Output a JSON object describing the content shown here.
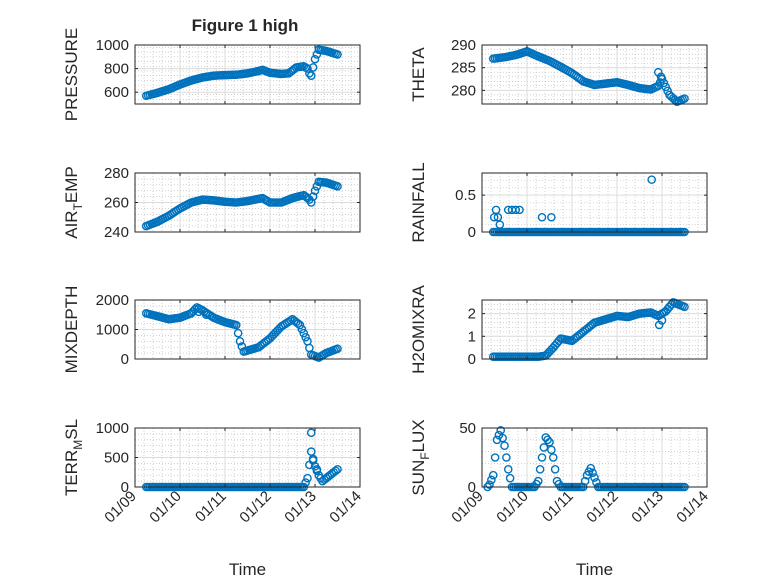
{
  "figure_title": "Figure 1 high",
  "x_axis_label": "Time",
  "colors": {
    "marker": "#0072BD",
    "axis": "#262626",
    "grid": "#DCDCDC",
    "minor_grid": "#B4B4B4"
  },
  "chart_data": [
    {
      "type": "scatter",
      "marker": "open-circle",
      "title": "Figure 1 high",
      "ylabel": "PRESSURE",
      "ylabel_base": "PRESSURE",
      "ylabel_sub": "",
      "xlabel": "",
      "xlim": [
        "2022-01-09",
        "2022-01-14"
      ],
      "xticks": [
        "01/09",
        "01/10",
        "01/11",
        "01/12",
        "01/13",
        "01/14"
      ],
      "ylim": [
        500,
        1000
      ],
      "yticks": [
        600,
        800,
        1000
      ],
      "grid": "on",
      "minor_grid": "on",
      "anchors": [
        [
          "01-09 06:00",
          570
        ],
        [
          "01-09 12:00",
          595
        ],
        [
          "01-09 18:00",
          625
        ],
        [
          "01-10 00:00",
          665
        ],
        [
          "01-10 06:00",
          700
        ],
        [
          "01-10 12:00",
          725
        ],
        [
          "01-10 18:00",
          740
        ],
        [
          "01-11 00:00",
          745
        ],
        [
          "01-11 06:00",
          748
        ],
        [
          "01-11 12:00",
          760
        ],
        [
          "01-11 18:00",
          780
        ],
        [
          "01-11 20:00",
          790
        ],
        [
          "01-12 00:00",
          765
        ],
        [
          "01-12 06:00",
          755
        ],
        [
          "01-12 10:00",
          760
        ],
        [
          "01-12 14:00",
          810
        ],
        [
          "01-12 18:00",
          820
        ],
        [
          "01-12 20:00",
          800
        ],
        [
          "01-12 21:00",
          760
        ],
        [
          "01-12 22:00",
          740
        ],
        [
          "01-13 00:00",
          880
        ],
        [
          "01-13 02:00",
          960
        ],
        [
          "01-13 06:00",
          950
        ],
        [
          "01-13 12:00",
          920
        ]
      ],
      "outliers": []
    },
    {
      "type": "scatter",
      "marker": "open-circle",
      "ylabel": "THETA",
      "ylabel_base": "THETA",
      "ylabel_sub": "",
      "xlabel": "",
      "xlim": [
        "2022-01-09",
        "2022-01-14"
      ],
      "xticks": [
        "01/09",
        "01/10",
        "01/11",
        "01/12",
        "01/13",
        "01/14"
      ],
      "ylim": [
        277,
        290
      ],
      "yticks": [
        280,
        285,
        290
      ],
      "grid": "on",
      "minor_grid": "on",
      "anchors": [
        [
          "01-09 06:00",
          287
        ],
        [
          "01-09 12:00",
          287.3
        ],
        [
          "01-09 18:00",
          287.8
        ],
        [
          "01-10 00:00",
          288.6
        ],
        [
          "01-10 06:00",
          287.5
        ],
        [
          "01-10 12:00",
          286.5
        ],
        [
          "01-10 18:00",
          285.2
        ],
        [
          "01-11 00:00",
          283.8
        ],
        [
          "01-11 06:00",
          282
        ],
        [
          "01-11 12:00",
          281.2
        ],
        [
          "01-11 18:00",
          281.5
        ],
        [
          "01-12 00:00",
          281.8
        ],
        [
          "01-12 06:00",
          281.2
        ],
        [
          "01-12 12:00",
          280.5
        ],
        [
          "01-12 18:00",
          280.2
        ],
        [
          "01-12 22:00",
          281
        ],
        [
          "01-13 00:00",
          282.5
        ],
        [
          "01-13 04:00",
          279
        ],
        [
          "01-13 08:00",
          277.5
        ],
        [
          "01-13 12:00",
          278.2
        ]
      ],
      "outliers": [
        [
          "01-12 22:00",
          284
        ],
        [
          "01-12 23:30",
          283
        ]
      ]
    },
    {
      "type": "scatter",
      "marker": "open-circle",
      "ylabel": "AIR_TEMP",
      "ylabel_base": "AIR",
      "ylabel_sub": "T",
      "ylabel_rest": "EMP",
      "xlabel": "",
      "xlim": [
        "2022-01-09",
        "2022-01-14"
      ],
      "xticks": [
        "01/09",
        "01/10",
        "01/11",
        "01/12",
        "01/13",
        "01/14"
      ],
      "ylim": [
        240,
        280
      ],
      "yticks": [
        240,
        260,
        280
      ],
      "grid": "on",
      "minor_grid": "on",
      "anchors": [
        [
          "01-09 06:00",
          244
        ],
        [
          "01-09 12:00",
          247
        ],
        [
          "01-09 18:00",
          251
        ],
        [
          "01-10 00:00",
          256
        ],
        [
          "01-10 06:00",
          260
        ],
        [
          "01-10 12:00",
          262
        ],
        [
          "01-10 18:00",
          261.5
        ],
        [
          "01-11 00:00",
          260.5
        ],
        [
          "01-11 06:00",
          260
        ],
        [
          "01-11 12:00",
          261
        ],
        [
          "01-11 18:00",
          262.5
        ],
        [
          "01-11 20:00",
          263
        ],
        [
          "01-12 00:00",
          260
        ],
        [
          "01-12 06:00",
          260
        ],
        [
          "01-12 12:00",
          263
        ],
        [
          "01-12 18:00",
          265
        ],
        [
          "01-12 21:00",
          262
        ],
        [
          "01-12 22:00",
          260
        ],
        [
          "01-13 00:00",
          268
        ],
        [
          "01-13 02:00",
          274
        ],
        [
          "01-13 06:00",
          273.5
        ],
        [
          "01-13 12:00",
          271
        ]
      ],
      "outliers": []
    },
    {
      "type": "scatter",
      "marker": "open-circle",
      "ylabel": "RAINFALL",
      "ylabel_base": "RAINFALL",
      "ylabel_sub": "",
      "xlabel": "",
      "xlim": [
        "2022-01-09",
        "2022-01-14"
      ],
      "xticks": [
        "01/09",
        "01/10",
        "01/11",
        "01/12",
        "01/13",
        "01/14"
      ],
      "ylim": [
        0,
        0.8
      ],
      "yticks": [
        0,
        0.5
      ],
      "grid": "on",
      "minor_grid": "on",
      "anchors": [
        [
          "01-09 06:00",
          0
        ],
        [
          "01-13 12:00",
          0
        ]
      ],
      "outliers": [
        [
          "01-09 06:30",
          0.2
        ],
        [
          "01-09 07:30",
          0.3
        ],
        [
          "01-09 08:30",
          0.2
        ],
        [
          "01-09 09:30",
          0.1
        ],
        [
          "01-09 14:00",
          0.3
        ],
        [
          "01-09 16:00",
          0.3
        ],
        [
          "01-09 18:00",
          0.3
        ],
        [
          "01-09 20:00",
          0.3
        ],
        [
          "01-10 08:00",
          0.2
        ],
        [
          "01-10 13:00",
          0.2
        ],
        [
          "01-12 18:30",
          0.71
        ]
      ]
    },
    {
      "type": "scatter",
      "marker": "open-circle",
      "ylabel": "MIXDEPTH",
      "ylabel_base": "MIXDEPTH",
      "ylabel_sub": "",
      "xlabel": "",
      "xlim": [
        "2022-01-09",
        "2022-01-14"
      ],
      "xticks": [
        "01/09",
        "01/10",
        "01/11",
        "01/12",
        "01/13",
        "01/14"
      ],
      "ylim": [
        0,
        2000
      ],
      "yticks": [
        0,
        1000,
        2000
      ],
      "grid": "on",
      "minor_grid": "on",
      "anchors": [
        [
          "01-09 06:00",
          1550
        ],
        [
          "01-09 12:00",
          1450
        ],
        [
          "01-09 18:00",
          1350
        ],
        [
          "01-10 00:00",
          1400
        ],
        [
          "01-10 06:00",
          1550
        ],
        [
          "01-10 09:00",
          1750
        ],
        [
          "01-10 12:00",
          1650
        ],
        [
          "01-10 18:00",
          1400
        ],
        [
          "01-11 00:00",
          1250
        ],
        [
          "01-11 06:00",
          1150
        ],
        [
          "01-11 08:00",
          600
        ],
        [
          "01-11 10:00",
          250
        ],
        [
          "01-11 18:00",
          400
        ],
        [
          "01-12 00:00",
          700
        ],
        [
          "01-12 06:00",
          1100
        ],
        [
          "01-12 12:00",
          1350
        ],
        [
          "01-12 16:00",
          1150
        ],
        [
          "01-12 20:00",
          600
        ],
        [
          "01-12 22:00",
          150
        ],
        [
          "01-13 02:00",
          50
        ],
        [
          "01-13 06:00",
          200
        ],
        [
          "01-13 12:00",
          350
        ]
      ],
      "outliers": [
        [
          "01-10 10:00",
          1600
        ],
        [
          "01-10 14:00",
          1500
        ]
      ]
    },
    {
      "type": "scatter",
      "marker": "open-circle",
      "ylabel": "H2OMIXRA",
      "ylabel_base": "H2OMIXRA",
      "ylabel_sub": "",
      "xlabel": "",
      "xlim": [
        "2022-01-09",
        "2022-01-14"
      ],
      "xticks": [
        "01/09",
        "01/10",
        "01/11",
        "01/12",
        "01/13",
        "01/14"
      ],
      "ylim": [
        0,
        2.6
      ],
      "yticks": [
        0,
        1,
        2
      ],
      "grid": "on",
      "minor_grid": "on",
      "anchors": [
        [
          "01-09 06:00",
          0.1
        ],
        [
          "01-10 06:00",
          0.1
        ],
        [
          "01-10 10:00",
          0.15
        ],
        [
          "01-10 14:00",
          0.5
        ],
        [
          "01-10 18:00",
          0.9
        ],
        [
          "01-11 00:00",
          0.8
        ],
        [
          "01-11 06:00",
          1.2
        ],
        [
          "01-11 12:00",
          1.6
        ],
        [
          "01-11 18:00",
          1.75
        ],
        [
          "01-12 00:00",
          1.9
        ],
        [
          "01-12 06:00",
          1.85
        ],
        [
          "01-12 12:00",
          2
        ],
        [
          "01-12 18:00",
          2.05
        ],
        [
          "01-12 22:00",
          1.9
        ],
        [
          "01-13 02:00",
          2.1
        ],
        [
          "01-13 06:00",
          2.5
        ],
        [
          "01-13 12:00",
          2.3
        ]
      ],
      "outliers": [
        [
          "01-12 22:30",
          1.5
        ],
        [
          "01-13 00:00",
          1.7
        ]
      ]
    },
    {
      "type": "scatter",
      "marker": "open-circle",
      "ylabel": "TERR_MSL",
      "ylabel_base": "TERR",
      "ylabel_sub": "M",
      "ylabel_rest": "SL",
      "xlabel": "Time",
      "xlim": [
        "2022-01-09",
        "2022-01-14"
      ],
      "xticks": [
        "01/09",
        "01/10",
        "01/11",
        "01/12",
        "01/13",
        "01/14"
      ],
      "ylim": [
        0,
        1000
      ],
      "yticks": [
        0,
        500,
        1000
      ],
      "grid": "on",
      "minor_grid": "on",
      "anchors": [
        [
          "01-09 06:00",
          0
        ],
        [
          "01-12 18:00",
          0
        ],
        [
          "01-12 20:00",
          150
        ],
        [
          "01-12 22:00",
          600
        ],
        [
          "01-13 00:00",
          350
        ],
        [
          "01-13 02:00",
          200
        ],
        [
          "01-13 04:00",
          100
        ],
        [
          "01-13 08:00",
          200
        ],
        [
          "01-13 12:00",
          300
        ]
      ],
      "outliers": [
        [
          "01-12 22:00",
          920
        ],
        [
          "01-12 23:00",
          450
        ],
        [
          "01-13 01:00",
          300
        ]
      ]
    },
    {
      "type": "scatter",
      "marker": "open-circle",
      "ylabel": "SUN_FLUX",
      "ylabel_base": "SUN",
      "ylabel_sub": "F",
      "ylabel_rest": "LUX",
      "xlabel": "Time",
      "xlim": [
        "2022-01-09",
        "2022-01-14"
      ],
      "xticks": [
        "01/09",
        "01/10",
        "01/11",
        "01/12",
        "01/13",
        "01/14"
      ],
      "ylim": [
        0,
        50
      ],
      "yticks": [
        0,
        50
      ],
      "grid": "on",
      "minor_grid": "on",
      "anchors": [
        [
          "01-09 03:00",
          0
        ],
        [
          "01-09 04:00",
          2
        ],
        [
          "01-09 06:00",
          10
        ],
        [
          "01-09 08:00",
          40
        ],
        [
          "01-09 10:00",
          48
        ],
        [
          "01-09 12:00",
          35
        ],
        [
          "01-09 14:00",
          15
        ],
        [
          "01-09 16:00",
          0
        ],
        [
          "01-10 04:00",
          0
        ],
        [
          "01-10 06:00",
          5
        ],
        [
          "01-10 08:00",
          25
        ],
        [
          "01-10 10:00",
          42
        ],
        [
          "01-10 12:00",
          38
        ],
        [
          "01-10 14:00",
          25
        ],
        [
          "01-10 16:00",
          5
        ],
        [
          "01-10 18:00",
          0
        ],
        [
          "01-11 06:00",
          0
        ],
        [
          "01-11 08:00",
          10
        ],
        [
          "01-11 10:00",
          16
        ],
        [
          "01-11 12:00",
          8
        ],
        [
          "01-11 14:00",
          0
        ],
        [
          "01-13 12:00",
          0
        ]
      ],
      "outliers": []
    }
  ]
}
